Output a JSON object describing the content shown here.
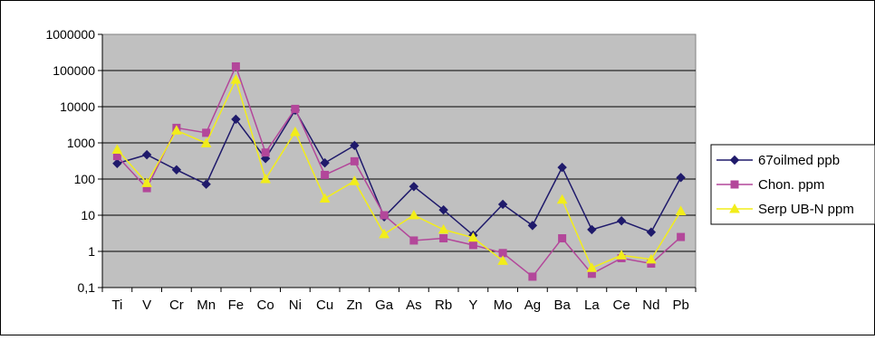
{
  "chart_data": {
    "type": "line",
    "title": "",
    "xlabel": "",
    "ylabel": "",
    "y_scale": "log",
    "ylim": [
      0.1,
      1000000
    ],
    "y_tick_labels": [
      "1000000",
      "100000",
      "10000",
      "1000",
      "100",
      "10",
      "1",
      "0,1"
    ],
    "grid": true,
    "legend_position": "right",
    "categories": [
      "Ti",
      "V",
      "Cr",
      "Mn",
      "Fe",
      "Co",
      "Ni",
      "Cu",
      "Zn",
      "Ga",
      "As",
      "Rb",
      "Y",
      "Mo",
      "Ag",
      "Ba",
      "La",
      "Ce",
      "Nd",
      "Pb"
    ],
    "series": [
      {
        "name": "67oilmed ppb",
        "color": "#1f1a6b",
        "marker": "diamond",
        "values": [
          270,
          470,
          180,
          72,
          4500,
          370,
          8000,
          280,
          850,
          9,
          62,
          14,
          2.8,
          20,
          5.2,
          210,
          4,
          7,
          3.4,
          110
        ]
      },
      {
        "name": "Chon. ppm",
        "color": "#b3479a",
        "marker": "square",
        "values": [
          430,
          56,
          2600,
          1900,
          130000,
          540,
          8700,
          130,
          310,
          10,
          2,
          2.3,
          1.5,
          0.9,
          0.2,
          2.3,
          0.24,
          0.65,
          0.46,
          2.5
        ]
      },
      {
        "name": "Serp UB-N ppm",
        "color": "#f2ed1a",
        "marker": "triangle",
        "values": [
          650,
          78,
          2200,
          980,
          56000,
          100,
          2000,
          29,
          88,
          3,
          10,
          4,
          2.4,
          0.55,
          null,
          27,
          0.35,
          0.78,
          0.6,
          13
        ]
      }
    ]
  }
}
